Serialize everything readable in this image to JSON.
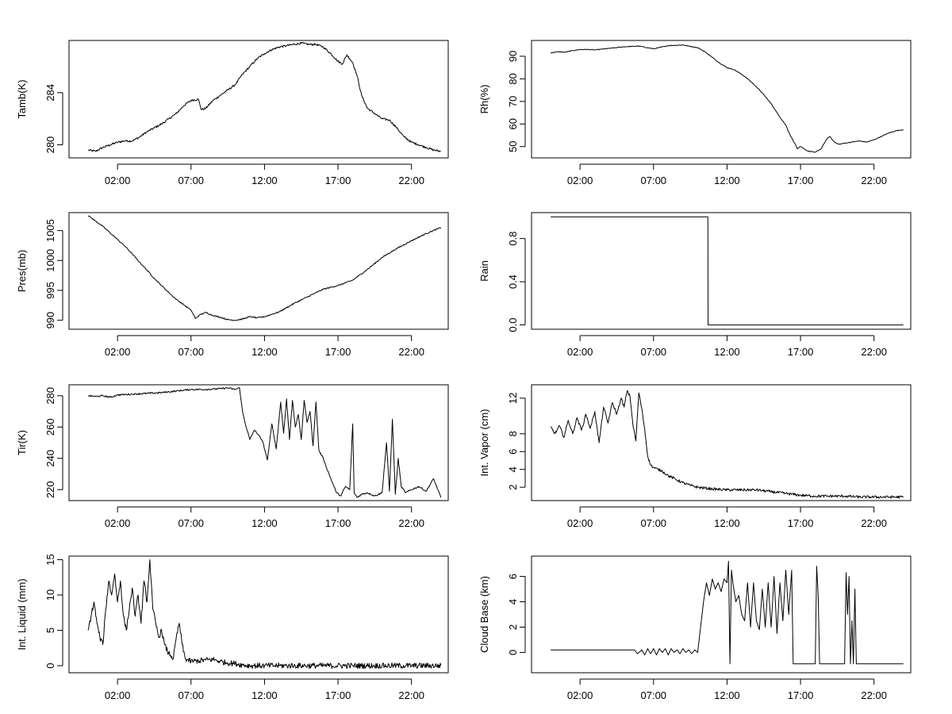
{
  "chart_data": [
    {
      "type": "line",
      "ylabel": "Tamb(K)",
      "xlim": [
        -1.3,
        24.5
      ],
      "ylim": [
        279,
        288
      ],
      "xticks": [
        2,
        7,
        12,
        17,
        22
      ],
      "xtick_labels": [
        "02:00",
        "07:00",
        "12:00",
        "17:00",
        "22:00"
      ],
      "yticks": [
        280,
        284
      ],
      "ytick_labels": [
        "280",
        "284"
      ],
      "series": [
        {
          "noise": 0.08,
          "x": [
            0,
            0.5,
            1,
            1.5,
            2,
            2.5,
            3,
            3.5,
            4,
            4.5,
            5,
            5.5,
            6,
            6.5,
            7,
            7.5,
            7.7,
            8,
            8.5,
            9,
            9.5,
            10,
            10.5,
            11,
            11.5,
            12,
            12.5,
            13,
            13.5,
            14,
            14.5,
            15,
            15.5,
            16,
            16.5,
            17,
            17.3,
            17.6,
            17.8,
            18,
            18.3,
            18.6,
            19,
            19.5,
            20,
            20.5,
            21,
            21.5,
            22,
            22.5,
            23,
            23.5,
            24
          ],
          "y": [
            279.6,
            279.5,
            279.8,
            280.0,
            280.2,
            280.3,
            280.3,
            280.6,
            281.0,
            281.3,
            281.6,
            282.0,
            282.4,
            283.0,
            283.4,
            283.5,
            282.7,
            282.8,
            283.4,
            283.8,
            284.2,
            284.6,
            285.4,
            286.0,
            286.6,
            287.0,
            287.3,
            287.5,
            287.6,
            287.7,
            287.8,
            287.7,
            287.7,
            287.5,
            287.0,
            286.4,
            286.2,
            286.9,
            286.6,
            286.3,
            285.3,
            283.8,
            282.8,
            282.4,
            282.0,
            281.9,
            281.3,
            280.6,
            280.2,
            280.0,
            279.8,
            279.6,
            279.5
          ]
        }
      ]
    },
    {
      "type": "line",
      "ylabel": "Rh(%)",
      "xlim": [
        -1.3,
        24.5
      ],
      "ylim": [
        45,
        97
      ],
      "xticks": [
        2,
        7,
        12,
        17,
        22
      ],
      "xtick_labels": [
        "02:00",
        "07:00",
        "12:00",
        "17:00",
        "22:00"
      ],
      "yticks": [
        50,
        60,
        70,
        80,
        90
      ],
      "ytick_labels": [
        "50",
        "60",
        "70",
        "80",
        "90"
      ],
      "series": [
        {
          "noise": 0.15,
          "x": [
            0,
            0.5,
            1,
            1.5,
            2,
            2.5,
            3,
            4,
            5,
            6,
            7,
            7.5,
            8,
            9,
            10,
            10.5,
            11,
            11.5,
            12,
            12.5,
            13,
            13.5,
            14,
            14.5,
            15,
            15.5,
            16,
            16.3,
            16.6,
            16.8,
            17,
            17.5,
            18,
            18.4,
            18.8,
            19,
            19.3,
            19.6,
            20,
            20.5,
            21,
            21.5,
            22,
            22.5,
            23,
            23.5,
            24
          ],
          "y": [
            91.5,
            92,
            91.8,
            92.5,
            93,
            93,
            92.8,
            93.5,
            94.2,
            94.5,
            93.3,
            94,
            94.7,
            95,
            93.8,
            92,
            89.5,
            87,
            85,
            84,
            82,
            79.5,
            76.5,
            73,
            69,
            64,
            59.5,
            55,
            51.5,
            49,
            50,
            48,
            47.5,
            49,
            53.5,
            54.5,
            52,
            51,
            51.5,
            52,
            52.5,
            52,
            53,
            54.5,
            56,
            57,
            57.5
          ]
        }
      ]
    },
    {
      "type": "line",
      "ylabel": "Pres(mb)",
      "xlim": [
        -1.3,
        24.5
      ],
      "ylim": [
        988.5,
        1008
      ],
      "xticks": [
        2,
        7,
        12,
        17,
        22
      ],
      "xtick_labels": [
        "02:00",
        "07:00",
        "12:00",
        "17:00",
        "22:00"
      ],
      "yticks": [
        990,
        995,
        1000,
        1005
      ],
      "ytick_labels": [
        "990",
        "995",
        "1000",
        "1005"
      ],
      "series": [
        {
          "noise": 0.1,
          "x": [
            0,
            0.5,
            1,
            1.5,
            2,
            2.5,
            3,
            3.5,
            4,
            4.5,
            5,
            5.5,
            6,
            6.5,
            7,
            7.3,
            7.6,
            8,
            8.5,
            9,
            9.5,
            10,
            10.5,
            11,
            11.5,
            12,
            13,
            14,
            15,
            16,
            17,
            18,
            19,
            20,
            21,
            22,
            23,
            24
          ],
          "y": [
            1007.5,
            1006.6,
            1005.7,
            1004.6,
            1003.5,
            1002.4,
            1001.1,
            999.7,
            998.4,
            997.0,
            995.8,
            994.6,
            993.5,
            992.6,
            991.7,
            990.3,
            990.9,
            991.3,
            990.8,
            990.5,
            990.1,
            990.0,
            990.2,
            990.6,
            990.4,
            990.6,
            991.4,
            992.8,
            994.0,
            995.2,
            995.8,
            996.7,
            998.5,
            1000.5,
            1002.0,
            1003.3,
            1004.5,
            1005.5
          ]
        }
      ]
    },
    {
      "type": "line",
      "ylabel": "Rain",
      "xlim": [
        -1.3,
        24.5
      ],
      "ylim": [
        -0.04,
        1.04
      ],
      "xticks": [
        2,
        7,
        12,
        17,
        22
      ],
      "xtick_labels": [
        "02:00",
        "07:00",
        "12:00",
        "17:00",
        "22:00"
      ],
      "yticks": [
        0,
        0.4,
        0.8
      ],
      "ytick_labels": [
        "0.0",
        "0.4",
        "0.8"
      ],
      "series": [
        {
          "noise": 0,
          "x": [
            0,
            10.7,
            10.71,
            24
          ],
          "y": [
            1,
            1,
            0,
            0
          ]
        }
      ]
    },
    {
      "type": "line",
      "ylabel": "Tir(K)",
      "xlim": [
        -1.3,
        24.5
      ],
      "ylim": [
        213,
        287
      ],
      "xticks": [
        2,
        7,
        12,
        17,
        22
      ],
      "xtick_labels": [
        "02:00",
        "07:00",
        "12:00",
        "17:00",
        "22:00"
      ],
      "yticks": [
        220,
        240,
        260,
        280
      ],
      "ytick_labels": [
        "220",
        "240",
        "260",
        "280"
      ],
      "series": [
        {
          "noise": 0.5,
          "x": [
            0,
            0.5,
            1,
            1.5,
            2,
            3,
            4,
            5,
            6,
            7,
            8,
            9,
            9.5,
            10,
            10.3,
            10.5,
            10.7,
            11,
            11.3,
            11.6,
            11.9,
            12.2,
            12.5,
            12.8,
            13.1,
            13.3,
            13.5,
            13.7,
            13.9,
            14.1,
            14.3,
            14.5,
            14.7,
            14.9,
            15.1,
            15.3,
            15.5,
            15.7,
            16,
            16.3,
            16.6,
            16.9,
            17.2,
            17.5,
            17.8,
            18.0,
            18.1,
            18.3,
            18.6,
            19.0,
            19.5,
            20.0,
            20.3,
            20.5,
            20.7,
            20.9,
            21.1,
            21.3,
            21.6,
            22,
            22.5,
            23,
            23.5,
            24
          ],
          "y": [
            280,
            279.5,
            280,
            279,
            280.5,
            281,
            281.5,
            282,
            283,
            284,
            284,
            284.5,
            285,
            284,
            285,
            270,
            262,
            252,
            258,
            255,
            250,
            239,
            262,
            246,
            276,
            256,
            278,
            252,
            277,
            260,
            268,
            252,
            277,
            263,
            270,
            248,
            276,
            245,
            240,
            232,
            225,
            218,
            216,
            222,
            220,
            262,
            218,
            215,
            217,
            218,
            216,
            218,
            250,
            219,
            265,
            217,
            240,
            222,
            218,
            220,
            222,
            219,
            227,
            215
          ]
        }
      ]
    },
    {
      "type": "line",
      "ylabel": "Int. Vapor (cm)",
      "xlim": [
        -1.3,
        24.5
      ],
      "ylim": [
        0.5,
        13.5
      ],
      "xticks": [
        2,
        7,
        12,
        17,
        22
      ],
      "xtick_labels": [
        "02:00",
        "07:00",
        "12:00",
        "17:00",
        "22:00"
      ],
      "yticks": [
        2,
        4,
        6,
        8,
        12
      ],
      "ytick_labels": [
        "2",
        "4",
        "6",
        "8",
        "12"
      ],
      "series": [
        {
          "noise": 0.15,
          "x": [
            0,
            0.3,
            0.6,
            0.9,
            1.2,
            1.5,
            1.8,
            2.1,
            2.4,
            2.7,
            3.0,
            3.3,
            3.6,
            3.9,
            4.2,
            4.5,
            4.8,
            5.0,
            5.2,
            5.4,
            5.6,
            5.8,
            6.0,
            6.2,
            6.4,
            6.6,
            6.8,
            7.0,
            7.3,
            7.6,
            8.0,
            8.5,
            9.0,
            9.5,
            10,
            11,
            12,
            13,
            14,
            15,
            16,
            17,
            18,
            19,
            20,
            21,
            22,
            23,
            24
          ],
          "y": [
            8.8,
            8.0,
            8.9,
            7.6,
            9.5,
            8.0,
            9.8,
            8.4,
            10.2,
            8.6,
            10.5,
            7.0,
            11.0,
            9.2,
            11.5,
            10.2,
            12.0,
            11.0,
            12.8,
            12.2,
            9.0,
            7.2,
            12.6,
            10.8,
            8.5,
            5.5,
            4.5,
            4.2,
            4.0,
            3.8,
            3.3,
            2.9,
            2.5,
            2.2,
            2.0,
            1.8,
            1.7,
            1.7,
            1.7,
            1.5,
            1.3,
            1.1,
            1.0,
            1.0,
            1.0,
            0.9,
            0.9,
            0.9,
            0.9
          ]
        }
      ]
    },
    {
      "type": "line",
      "ylabel": "Int. Liquid (mm)",
      "xlim": [
        -1.3,
        24.5
      ],
      "ylim": [
        -1,
        15.5
      ],
      "xticks": [
        2,
        7,
        12,
        17,
        22
      ],
      "xtick_labels": [
        "02:00",
        "07:00",
        "12:00",
        "17:00",
        "22:00"
      ],
      "yticks": [
        0,
        5,
        10,
        15
      ],
      "ytick_labels": [
        "0",
        "5",
        "10",
        "15"
      ],
      "series": [
        {
          "noise": 0.4,
          "x": [
            0,
            0.2,
            0.4,
            0.6,
            0.8,
            1.0,
            1.2,
            1.4,
            1.6,
            1.8,
            2.0,
            2.2,
            2.4,
            2.6,
            2.8,
            3.0,
            3.2,
            3.4,
            3.6,
            3.8,
            4.0,
            4.2,
            4.4,
            4.6,
            4.8,
            5.0,
            5.2,
            5.4,
            5.6,
            5.8,
            6.0,
            6.2,
            6.4,
            6.6,
            7.0,
            7.5,
            8.0,
            8.5,
            9.0,
            9.5,
            10,
            10.5,
            11,
            12,
            13,
            14,
            16,
            18,
            20,
            22,
            24
          ],
          "y": [
            5,
            7,
            9,
            6,
            4,
            3,
            8,
            12,
            10,
            13,
            9,
            12,
            7,
            5,
            8,
            11,
            7,
            10,
            6,
            12,
            9,
            15,
            8,
            6,
            4,
            5,
            3,
            2,
            1.5,
            1,
            4,
            6,
            3,
            1,
            0.6,
            0.7,
            0.8,
            0.9,
            0.6,
            0.4,
            0.3,
            0.1,
            0,
            0,
            0,
            0,
            0,
            0,
            0,
            0,
            0
          ]
        }
      ]
    },
    {
      "type": "line",
      "ylabel": "Cloud Base (km)",
      "xlim": [
        -1.3,
        24.5
      ],
      "ylim": [
        -1.6,
        7.6
      ],
      "xticks": [
        2,
        7,
        12,
        17,
        22
      ],
      "xtick_labels": [
        "02:00",
        "07:00",
        "12:00",
        "17:00",
        "22:00"
      ],
      "yticks": [
        0,
        2,
        4,
        6
      ],
      "ytick_labels": [
        "0",
        "2",
        "4",
        "6"
      ],
      "series": [
        {
          "noise": 0,
          "x": [
            0,
            5.7,
            5.9,
            6.2,
            6.4,
            6.6,
            6.8,
            7.0,
            7.2,
            7.4,
            7.6,
            7.8,
            8.0,
            8.2,
            8.4,
            8.6,
            8.8,
            9.0,
            9.2,
            9.4,
            9.6,
            9.8,
            10.0,
            10.2,
            10.4,
            10.6,
            10.8,
            11.0,
            11.2,
            11.4,
            11.6,
            11.8,
            12.0,
            12.1,
            12.2,
            12.3,
            12.4,
            12.6,
            12.8,
            13.0,
            13.2,
            13.4,
            13.6,
            13.8,
            14.0,
            14.2,
            14.4,
            14.6,
            14.8,
            15.0,
            15.2,
            15.4,
            15.6,
            15.8,
            16.0,
            16.2,
            16.4,
            16.5,
            16.6,
            17.0,
            18.0,
            18.1,
            18.2,
            18.3,
            18.4,
            18.5,
            19.0,
            20.0,
            20.1,
            20.2,
            20.3,
            20.4,
            20.5,
            20.6,
            20.7,
            20.8,
            21.0,
            21.1,
            22.0,
            23.0,
            24.0
          ],
          "y": [
            0.2,
            0.2,
            -0.1,
            0.2,
            -0.2,
            0.3,
            -0.1,
            0.3,
            -0.2,
            0.3,
            0,
            0.3,
            -0.2,
            0.3,
            0,
            0.2,
            -0.1,
            0.3,
            0,
            0.2,
            -0.1,
            0.2,
            0,
            2,
            4,
            5.5,
            4.5,
            5.8,
            5,
            5.5,
            4.8,
            5.8,
            5.5,
            7.2,
            -0.9,
            6.5,
            5.5,
            4,
            4.5,
            3,
            2.5,
            5.5,
            2,
            5.5,
            2.5,
            1.8,
            5,
            2,
            5.5,
            2,
            6,
            1.5,
            5.5,
            2.5,
            6.5,
            3,
            6.5,
            -0.9,
            -0.9,
            -0.9,
            -0.9,
            6.8,
            4.5,
            -0.9,
            -0.9,
            -0.9,
            -0.9,
            -0.9,
            6.3,
            3,
            6,
            -0.9,
            2.5,
            -0.9,
            5,
            -0.9,
            -0.9,
            -0.9,
            -0.9,
            -0.9,
            -0.9
          ]
        }
      ]
    }
  ]
}
